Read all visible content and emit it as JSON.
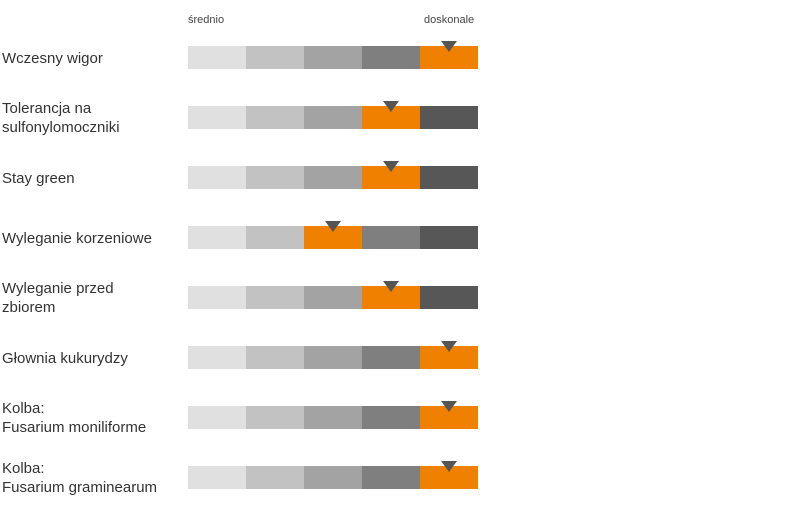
{
  "chart_data": {
    "type": "rating-scale",
    "scale_low_label": "średnio",
    "scale_high_label": "doskonale",
    "levels": 5,
    "segment_colors": [
      "#e0e0e0",
      "#c2c2c2",
      "#a3a3a3",
      "#7f7f7f",
      "#575757"
    ],
    "highlight_color": "#f08000",
    "marker_color": "#555555",
    "traits": [
      {
        "label": "Wczesny wigor",
        "value": 5
      },
      {
        "label": "Tolerancja na\nsulfonylomoczniki",
        "value": 4
      },
      {
        "label": "Stay green",
        "value": 4
      },
      {
        "label": "Wyleganie korzeniowe",
        "value": 3
      },
      {
        "label": "Wyleganie przed\nzbiorem",
        "value": 4
      },
      {
        "label": "Głownia kukurydzy",
        "value": 5
      },
      {
        "label": "Kolba:\nFusarium moniliforme",
        "value": 5
      },
      {
        "label": "Kolba:\nFusarium graminearum",
        "value": 5
      }
    ]
  }
}
